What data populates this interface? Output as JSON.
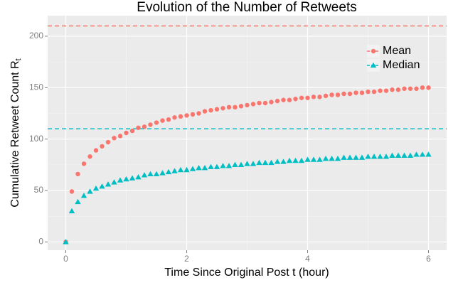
{
  "chart_data": {
    "type": "scatter",
    "title": "Evolution of the Number of Retweets",
    "x_label": "Time Since Original Post t (hour)",
    "y_label": "Cumulative Retweet Count R",
    "y_label_subscript": "t",
    "x": [
      0,
      0.1,
      0.2,
      0.3,
      0.4,
      0.5,
      0.6,
      0.7,
      0.8,
      0.9,
      1.0,
      1.1,
      1.2,
      1.3,
      1.4,
      1.5,
      1.6,
      1.7,
      1.8,
      1.9,
      2.0,
      2.1,
      2.2,
      2.3,
      2.4,
      2.5,
      2.6,
      2.7,
      2.8,
      2.9,
      3.0,
      3.1,
      3.2,
      3.3,
      3.4,
      3.5,
      3.6,
      3.7,
      3.8,
      3.9,
      4.0,
      4.1,
      4.2,
      4.3,
      4.4,
      4.5,
      4.6,
      4.7,
      4.8,
      4.9,
      5.0,
      5.1,
      5.2,
      5.3,
      5.4,
      5.5,
      5.6,
      5.7,
      5.8,
      5.9,
      6.0
    ],
    "series": [
      {
        "name": "Mean",
        "color": "#F8766D",
        "marker": "circle",
        "values": [
          0,
          49,
          66,
          76,
          83,
          89,
          93,
          97,
          101,
          103,
          106,
          108,
          111,
          112,
          114,
          116,
          118,
          119,
          121,
          122,
          123,
          124,
          125,
          127,
          128,
          129,
          130,
          131,
          131,
          132,
          133,
          134,
          135,
          135,
          136,
          137,
          138,
          138,
          139,
          140,
          140,
          141,
          141,
          142,
          143,
          143,
          144,
          144,
          145,
          145,
          146,
          146,
          147,
          147,
          148,
          148,
          149,
          149,
          149,
          150,
          150
        ]
      },
      {
        "name": "Median",
        "color": "#00BFC4",
        "marker": "triangle",
        "values": [
          0,
          30,
          39,
          45,
          49,
          52,
          54,
          56,
          58,
          60,
          61,
          62,
          63,
          65,
          66,
          66,
          67,
          68,
          69,
          70,
          70,
          71,
          72,
          72,
          73,
          73,
          74,
          74,
          75,
          75,
          76,
          76,
          77,
          77,
          77,
          78,
          78,
          79,
          79,
          79,
          80,
          80,
          80,
          81,
          81,
          81,
          82,
          82,
          82,
          82,
          83,
          83,
          83,
          83,
          84,
          84,
          84,
          84,
          85,
          85,
          85
        ]
      }
    ],
    "hlines": [
      {
        "value": 210,
        "color": "#F8766D"
      },
      {
        "value": 110,
        "color": "#00BFC4"
      }
    ],
    "xlim": [
      -0.3,
      6.3
    ],
    "ylim": [
      -8,
      220
    ],
    "xticks": [
      0,
      2,
      4,
      6
    ],
    "yticks": [
      0,
      50,
      100,
      150,
      200
    ],
    "x_minor_ticks": [
      1,
      3,
      5
    ],
    "y_minor_ticks": [
      25,
      75,
      125,
      175
    ],
    "grid": true,
    "legend_position": "top-right"
  }
}
